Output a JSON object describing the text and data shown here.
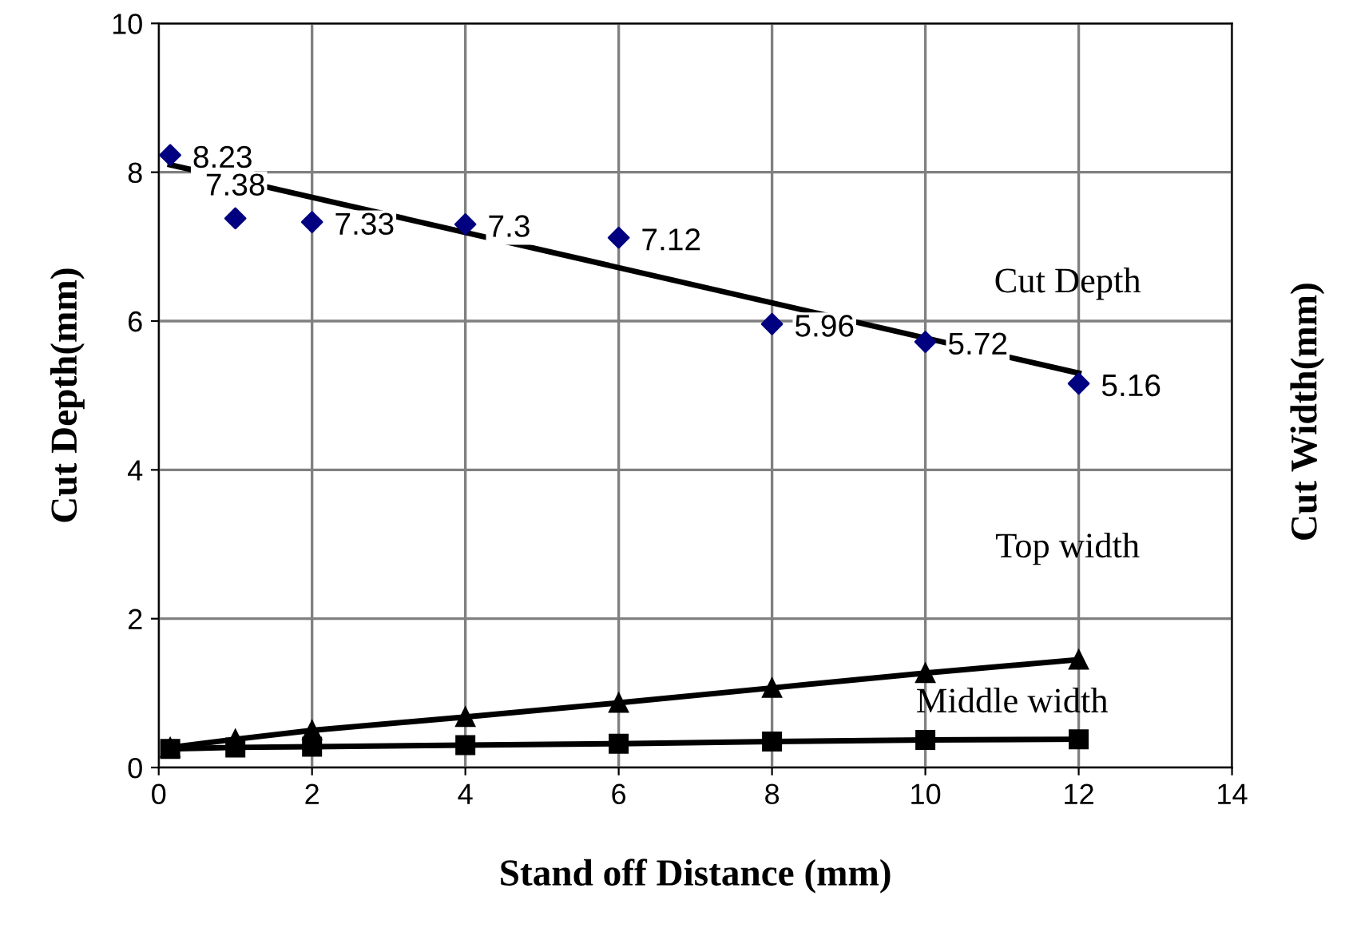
{
  "chart_data": {
    "type": "line",
    "xlabel": "Stand off Distance (mm)",
    "ylabel": "Cut Depth(mm)",
    "y2label": "Cut Width(mm)",
    "xlim": [
      0,
      14
    ],
    "xticks": [
      0,
      2,
      4,
      6,
      8,
      10,
      12,
      14
    ],
    "ylim": [
      0,
      10
    ],
    "yticks": [
      0,
      2,
      4,
      6,
      8,
      10
    ],
    "grid": true,
    "series": [
      {
        "name": "Cut Depth",
        "type": "scatter",
        "marker": "diamond",
        "color": "#000080",
        "x": [
          0.15,
          1,
          2,
          4,
          6,
          8,
          10,
          12
        ],
        "values": [
          8.23,
          7.38,
          7.33,
          7.3,
          7.12,
          5.96,
          5.72,
          5.16
        ],
        "value_labels": [
          "8.23",
          "7.38",
          "7.33",
          "7.3",
          "7.12",
          "5.96",
          "5.72",
          "5.16"
        ]
      },
      {
        "marker": "none",
        "color": "#000000",
        "x": [
          0.15,
          12
        ],
        "values": [
          8.1,
          5.3
        ]
      },
      {
        "name": "Top width",
        "marker": "triangle",
        "color": "#000000",
        "x": [
          0.15,
          1,
          2,
          4,
          6,
          8,
          10,
          12
        ],
        "values": [
          0.27,
          0.38,
          0.5,
          0.68,
          0.87,
          1.07,
          1.27,
          1.45
        ]
      },
      {
        "name": "Middle width",
        "marker": "square",
        "color": "#000000",
        "x": [
          0.15,
          1,
          2,
          4,
          6,
          8,
          10,
          12
        ],
        "values": [
          0.25,
          0.27,
          0.28,
          0.3,
          0.32,
          0.35,
          0.37,
          0.38
        ]
      }
    ]
  }
}
